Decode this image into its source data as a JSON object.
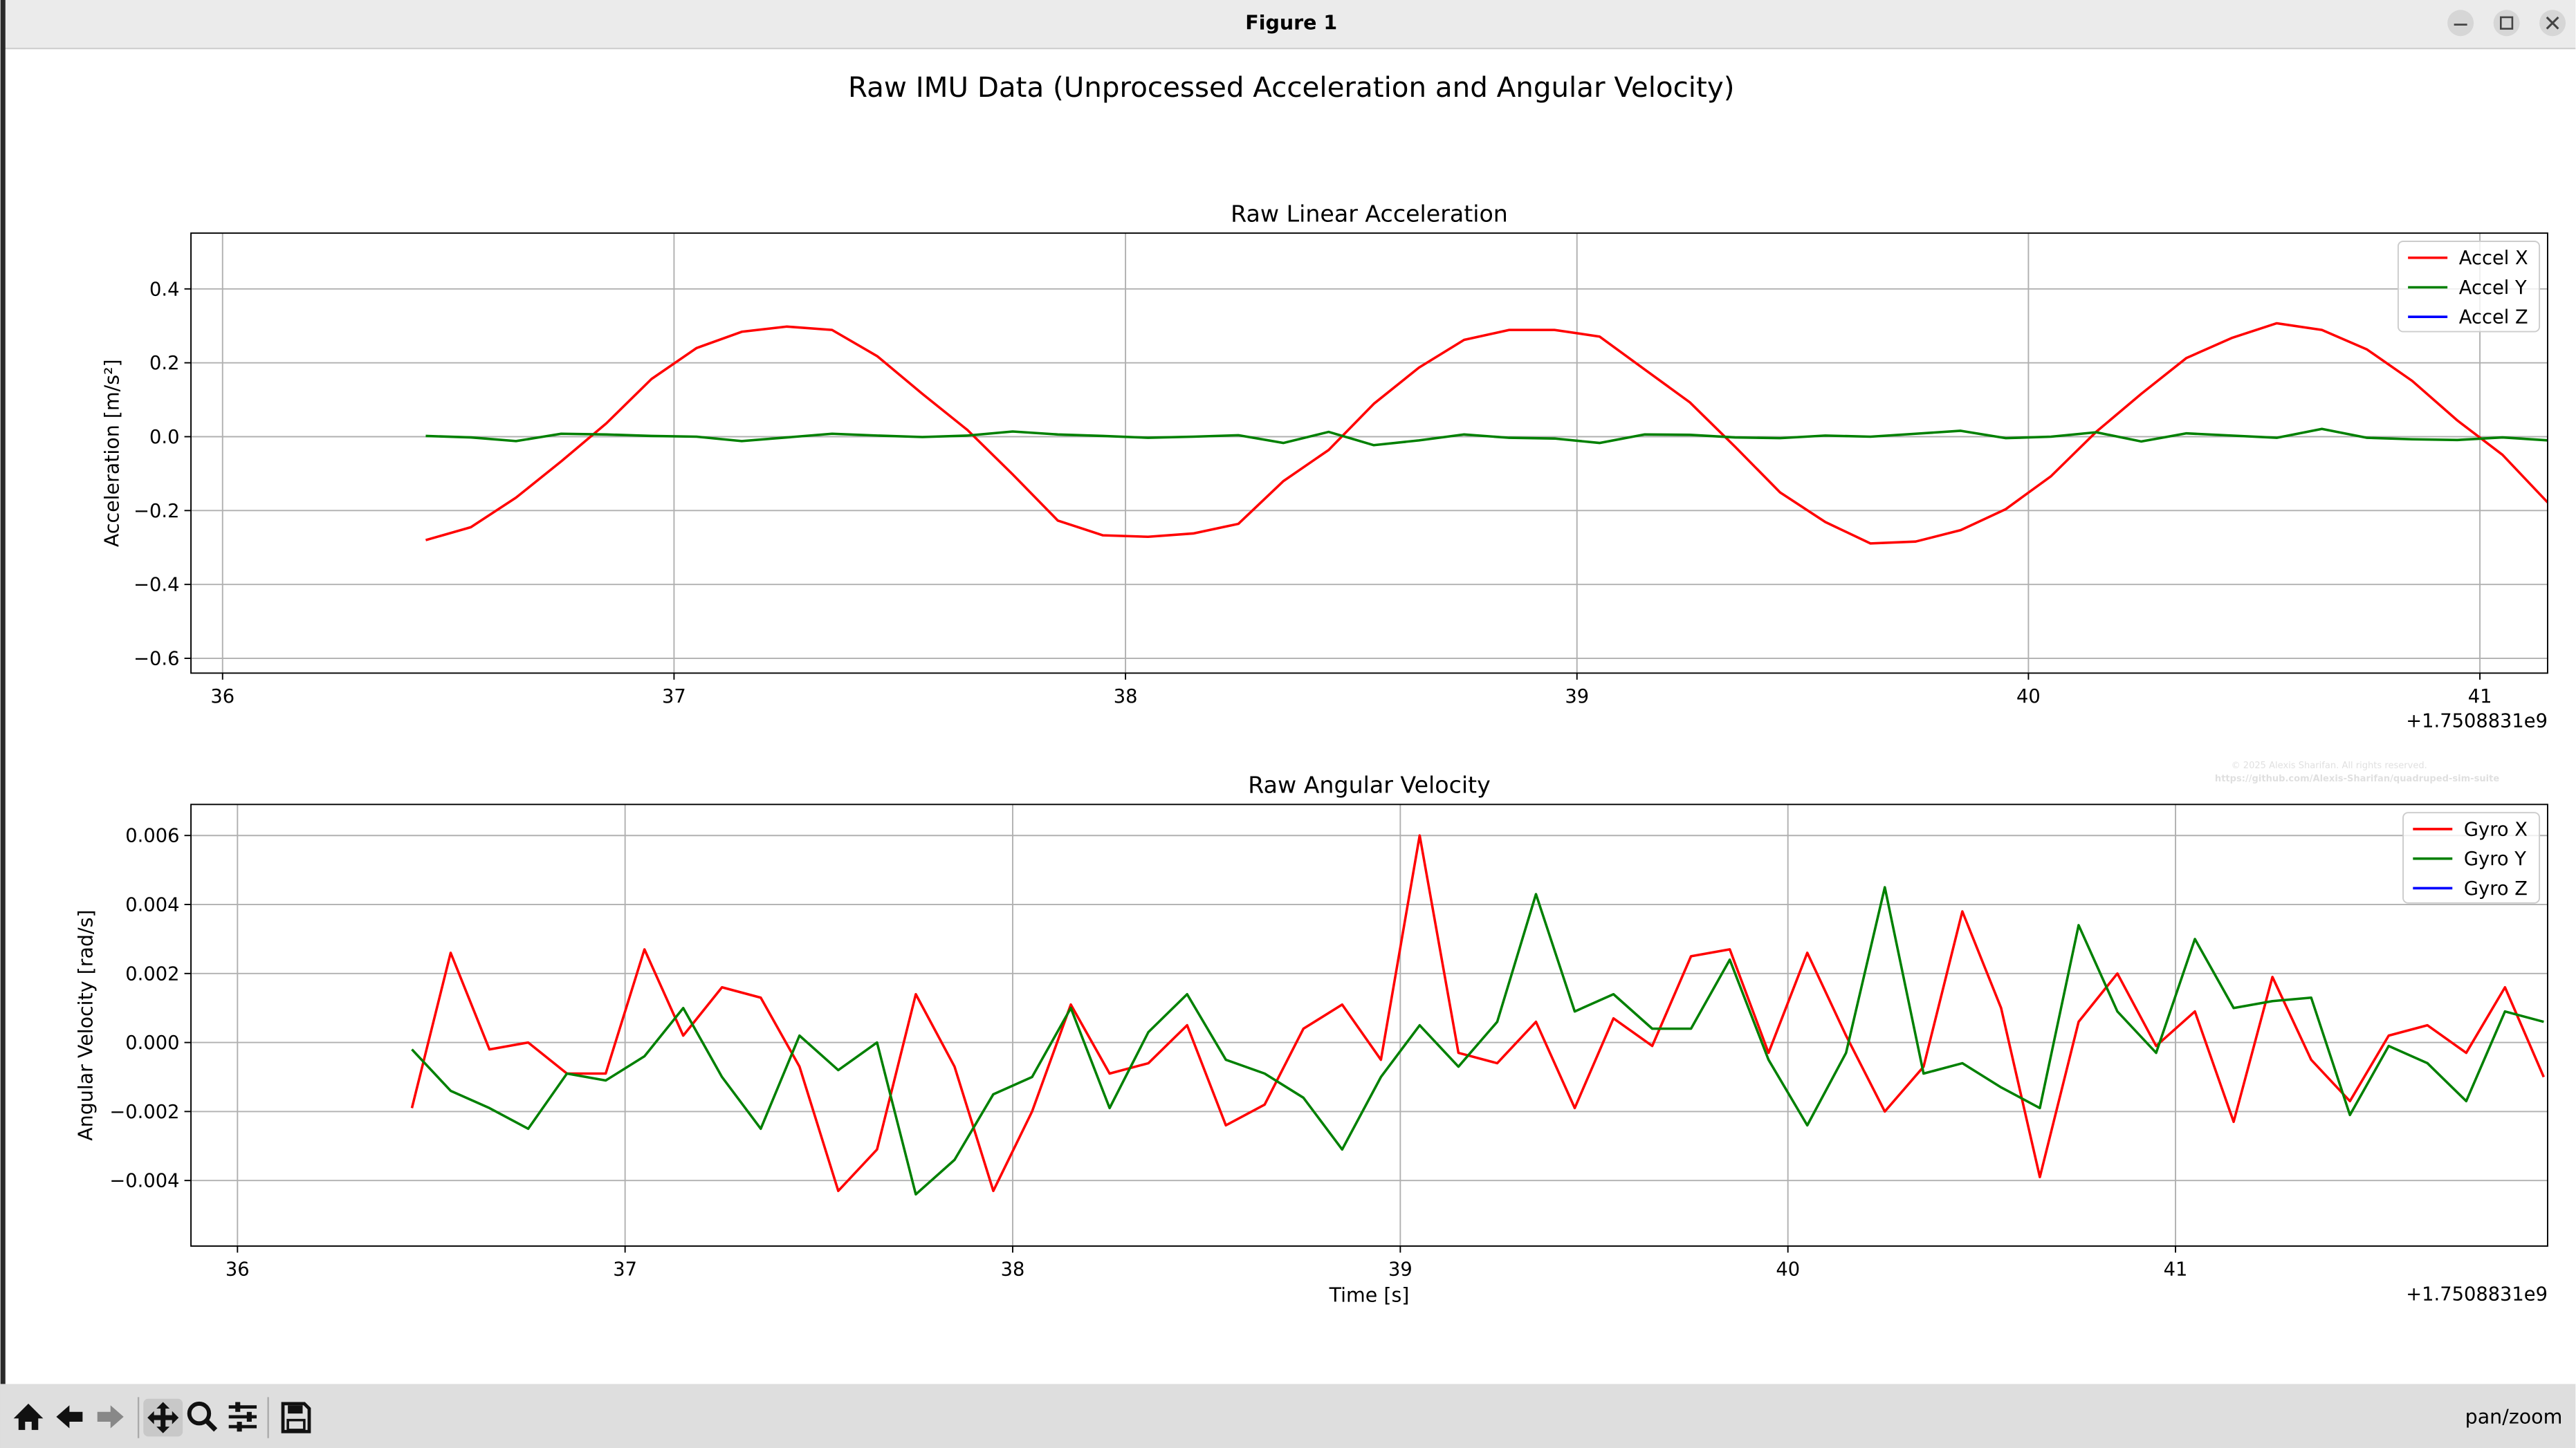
{
  "window": {
    "title": "Figure 1",
    "status": "pan/zoom"
  },
  "figure_title": "Raw IMU Data (Unprocessed Acceleration and Angular Velocity)",
  "watermark": [
    "© 2025 Alexis Sharifan. All rights reserved.",
    "https://github.com/Alexis-Sharifan/quadruped-sim-suite"
  ],
  "chart_data": [
    {
      "type": "line",
      "title": "Raw Linear Acceleration",
      "ylabel": "Acceleration [m/s²]",
      "offset_text": "+1.7508831e9",
      "x": [
        36.45,
        36.55,
        36.65,
        36.75,
        36.85,
        36.95,
        37.05,
        37.15,
        37.25,
        37.35,
        37.45,
        37.55,
        37.65,
        37.75,
        37.85,
        37.95,
        38.05,
        38.15,
        38.25,
        38.35,
        38.45,
        38.55,
        38.65,
        38.75,
        38.85,
        38.95,
        39.05,
        39.15,
        39.25,
        39.35,
        39.45,
        39.55,
        39.65,
        39.75,
        39.85,
        39.95,
        40.05,
        40.15,
        40.25,
        40.35,
        40.45,
        40.55,
        40.65,
        40.75,
        40.85,
        40.95,
        41.05,
        41.15
      ],
      "series": [
        {
          "name": "Accel X",
          "color": "#ff0000",
          "values": [
            -0.28,
            -0.245,
            -0.165,
            -0.067,
            0.036,
            0.156,
            0.24,
            0.284,
            0.298,
            0.289,
            0.218,
            0.116,
            0.018,
            -0.102,
            -0.227,
            -0.267,
            -0.271,
            -0.262,
            -0.236,
            -0.12,
            -0.036,
            0.089,
            0.187,
            0.262,
            0.289,
            0.289,
            0.271,
            0.182,
            0.093,
            -0.027,
            -0.151,
            -0.231,
            -0.289,
            -0.284,
            -0.253,
            -0.196,
            -0.107,
            0.013,
            0.116,
            0.213,
            0.267,
            0.307,
            0.289,
            0.236,
            0.151,
            0.044,
            -0.049,
            -0.178
          ]
        },
        {
          "name": "Accel Y",
          "color": "#008000",
          "values": [
            0.002,
            -0.002,
            -0.012,
            0.008,
            0.006,
            0.002,
            0.0,
            -0.012,
            -0.002,
            0.008,
            0.003,
            -0.001,
            0.003,
            0.014,
            0.006,
            0.002,
            -0.003,
            0.0,
            0.004,
            -0.017,
            0.013,
            -0.023,
            -0.01,
            0.006,
            -0.003,
            -0.005,
            -0.017,
            0.006,
            0.005,
            -0.002,
            -0.004,
            0.003,
            0.0,
            0.008,
            0.016,
            -0.004,
            0.0,
            0.012,
            -0.013,
            0.009,
            0.003,
            -0.003,
            0.021,
            -0.003,
            -0.007,
            -0.009,
            -0.002,
            -0.01
          ]
        },
        {
          "name": "Accel Z",
          "color": "#0000ff",
          "values": [
            null,
            null,
            null,
            null,
            null,
            null,
            null,
            null,
            null,
            null,
            null,
            null,
            null,
            null,
            null,
            null,
            null,
            null,
            null,
            null,
            null,
            null,
            null,
            null,
            null,
            null,
            null,
            null,
            null,
            null,
            null,
            null,
            null,
            null,
            null,
            null,
            null,
            null,
            null,
            null,
            null,
            null,
            null,
            null,
            null,
            null,
            null,
            null
          ]
        }
      ],
      "xlim": [
        35.93,
        41.15
      ],
      "ylim": [
        -0.64,
        0.551
      ],
      "xticks": [
        36,
        37,
        38,
        39,
        40,
        41
      ],
      "yticks": [
        {
          "value": -0.6,
          "label": "−0.6"
        },
        {
          "value": -0.4,
          "label": "−0.4"
        },
        {
          "value": -0.2,
          "label": "−0.2"
        },
        {
          "value": 0,
          "label": "0.0"
        },
        0.2,
        0.4
      ],
      "grid": true,
      "legend": "upper right"
    },
    {
      "type": "line",
      "title": "Raw Angular Velocity",
      "xlabel": "Time [s]",
      "ylabel": "Angular Velocity [rad/s]",
      "offset_text": "+1.7508831e9",
      "x": [
        36.45,
        36.55,
        36.65,
        36.75,
        36.85,
        36.95,
        37.05,
        37.15,
        37.25,
        37.35,
        37.45,
        37.55,
        37.65,
        37.75,
        37.85,
        37.95,
        38.05,
        38.15,
        38.25,
        38.35,
        38.45,
        38.55,
        38.65,
        38.75,
        38.85,
        38.95,
        39.05,
        39.15,
        39.25,
        39.35,
        39.45,
        39.55,
        39.65,
        39.75,
        39.85,
        39.95,
        40.05,
        40.15,
        40.25,
        40.35,
        40.45,
        40.55,
        40.65,
        40.75,
        40.85,
        40.95,
        41.05,
        41.15,
        41.25,
        41.35,
        41.45,
        41.55,
        41.65,
        41.75,
        41.85,
        41.95
      ],
      "series": [
        {
          "name": "Gyro X",
          "color": "#ff0000",
          "values": [
            -0.0019,
            0.0026,
            -0.0002,
            0.0,
            -0.0009,
            -0.0009,
            0.0027,
            0.0002,
            0.0016,
            0.0013,
            -0.0007,
            -0.0043,
            -0.0031,
            0.0014,
            -0.0007,
            -0.0043,
            -0.002,
            0.0011,
            -0.0009,
            -0.0006,
            0.0005,
            -0.0024,
            -0.0018,
            0.0004,
            0.0011,
            -0.0005,
            0.006,
            -0.0003,
            -0.0006,
            0.0006,
            -0.0019,
            0.0007,
            -0.0001,
            0.0025,
            0.0027,
            -0.0003,
            0.0026,
            0.0002,
            -0.002,
            -0.0007,
            0.0038,
            0.001,
            -0.0039,
            0.0006,
            0.002,
            -0.0001,
            0.0009,
            -0.0023,
            0.0019,
            -0.0005,
            -0.0017,
            0.0002,
            0.0005,
            -0.0003,
            0.0016,
            -0.001
          ]
        },
        {
          "name": "Gyro Y",
          "color": "#008000",
          "values": [
            -0.0002,
            -0.0014,
            -0.0019,
            -0.0025,
            -0.0009,
            -0.0011,
            -0.0004,
            0.001,
            -0.001,
            -0.0025,
            0.0002,
            -0.0008,
            0.0,
            -0.0044,
            -0.0034,
            -0.0015,
            -0.001,
            0.001,
            -0.0019,
            0.0003,
            0.0014,
            -0.0005,
            -0.0009,
            -0.0016,
            -0.0031,
            -0.001,
            0.0005,
            -0.0007,
            0.0006,
            0.0043,
            0.0009,
            0.0014,
            0.0004,
            0.0004,
            0.0024,
            -0.0005,
            -0.0024,
            -0.0003,
            0.0045,
            -0.0009,
            -0.0006,
            -0.0013,
            -0.0019,
            0.0034,
            0.0009,
            -0.0003,
            0.003,
            0.001,
            0.0012,
            0.0013,
            -0.0021,
            -0.0001,
            -0.0006,
            -0.0017,
            0.0009,
            0.0006
          ]
        },
        {
          "name": "Gyro Z",
          "color": "#0000ff",
          "values": [
            null,
            null,
            null,
            null,
            null,
            null,
            null,
            null,
            null,
            null,
            null,
            null,
            null,
            null,
            null,
            null,
            null,
            null,
            null,
            null,
            null,
            null,
            null,
            null,
            null,
            null,
            null,
            null,
            null,
            null,
            null,
            null,
            null,
            null,
            null,
            null,
            null,
            null,
            null,
            null,
            null,
            null,
            null,
            null,
            null,
            null,
            null,
            null,
            null,
            null,
            null,
            null,
            null,
            null,
            null,
            null
          ]
        }
      ],
      "xlim": [
        35.88,
        41.96
      ],
      "ylim": [
        -0.0059,
        0.0069
      ],
      "xticks": [
        36,
        37,
        38,
        39,
        40,
        41
      ],
      "yticks": [
        {
          "value": -0.004,
          "label": "−0.004"
        },
        {
          "value": -0.002,
          "label": "−0.002"
        },
        {
          "value": 0,
          "label": "0.000"
        },
        0.002,
        0.004,
        0.006
      ],
      "grid": true,
      "legend": "upper right"
    }
  ]
}
